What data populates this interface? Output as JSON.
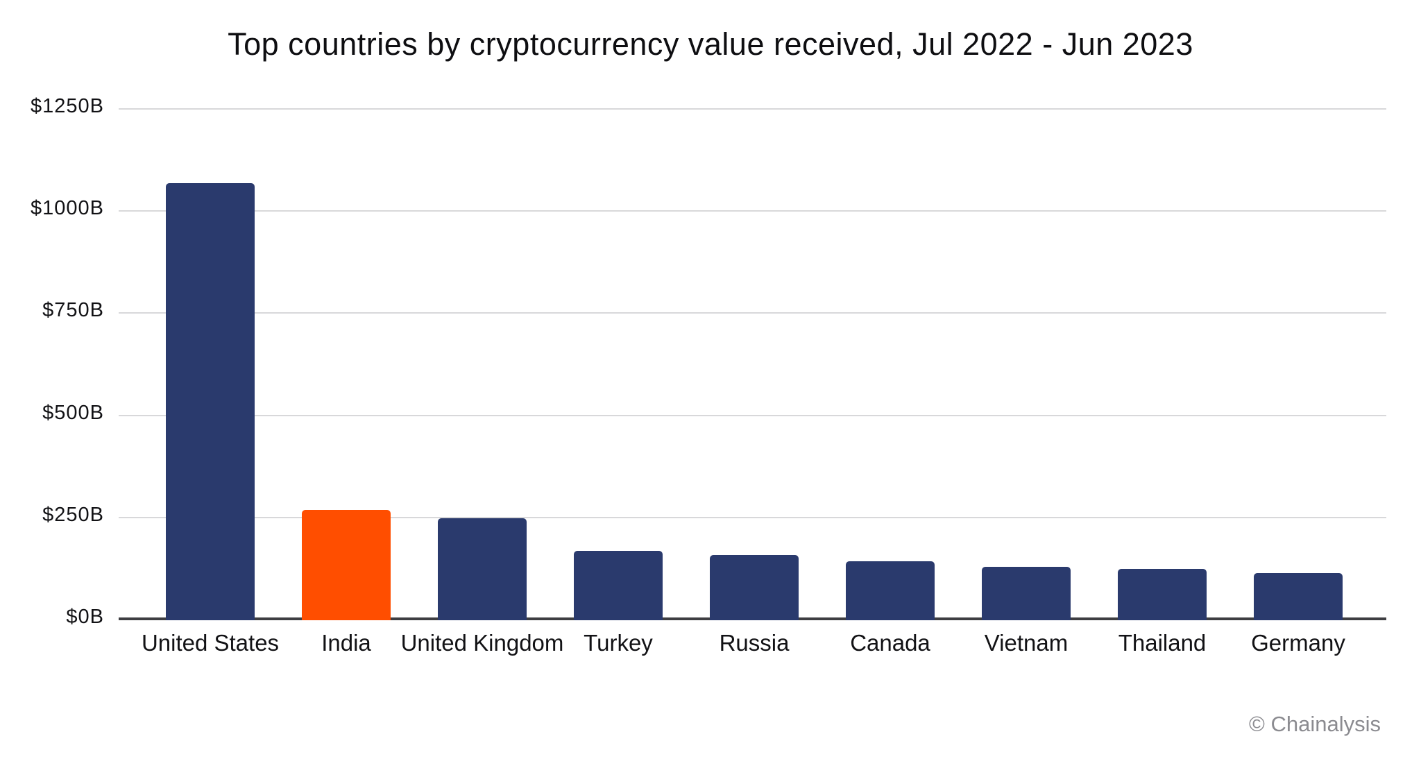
{
  "title": "Top countries by cryptocurrency value received, Jul 2022 - Jun 2023",
  "watermark": "© Chainalysis",
  "colors": {
    "background": "#FFFFFF",
    "bar_default": "#2A3A6D",
    "bar_highlight": "#FF4E00",
    "gridline": "#D8D8DA",
    "axis_line": "#3E3E42",
    "text": "#121215",
    "watermark": "#8B8B90"
  },
  "chart_data": {
    "type": "bar",
    "title": "Top countries by cryptocurrency value received, Jul 2022 - Jun 2023",
    "categories": [
      "United States",
      "India",
      "United Kingdom",
      "Turkey",
      "Russia",
      "Canada",
      "Vietnam",
      "Thailand",
      "Germany"
    ],
    "values": [
      1070,
      270,
      250,
      170,
      160,
      145,
      130,
      125,
      115
    ],
    "highlight_index": 1,
    "highlight_category": "India",
    "xlabel": "",
    "ylabel": "",
    "ylim": [
      0,
      1250
    ],
    "y_tick_values": [
      0,
      250,
      500,
      750,
      1000,
      1250
    ],
    "y_tick_labels": [
      "$0B",
      "$250B",
      "$500B",
      "$750B",
      "$1000B",
      "$1250B"
    ],
    "grid": true,
    "legend": "none",
    "annotation": "© Chainalysis"
  }
}
